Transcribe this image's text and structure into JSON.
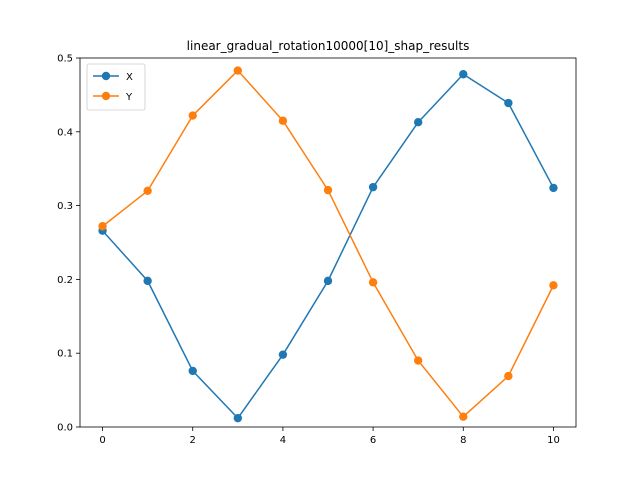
{
  "chart_data": {
    "type": "line",
    "title": "linear_gradual_rotation10000[10]_shap_results",
    "xlabel": "",
    "ylabel": "",
    "x": [
      0,
      1,
      2,
      3,
      4,
      5,
      6,
      7,
      8,
      9,
      10
    ],
    "xlim": [
      -0.5,
      10.5
    ],
    "ylim": [
      0.0,
      0.5
    ],
    "x_ticks": [
      0,
      2,
      4,
      6,
      8,
      10
    ],
    "x_tick_labels": [
      "0",
      "2",
      "4",
      "6",
      "8",
      "10"
    ],
    "y_ticks": [
      0.0,
      0.1,
      0.2,
      0.3,
      0.4,
      0.5
    ],
    "y_tick_labels": [
      "0.0",
      "0.1",
      "0.2",
      "0.3",
      "0.4",
      "0.5"
    ],
    "grid": false,
    "legend_position": "top-left",
    "series": [
      {
        "name": "X",
        "color": "#1f77b4",
        "marker": "circle",
        "values": [
          0.266,
          0.198,
          0.076,
          0.012,
          0.098,
          0.198,
          0.325,
          0.413,
          0.478,
          0.439,
          0.324
        ]
      },
      {
        "name": "Y",
        "color": "#ff7f0e",
        "marker": "circle",
        "values": [
          0.272,
          0.32,
          0.422,
          0.483,
          0.415,
          0.321,
          0.196,
          0.09,
          0.014,
          0.069,
          0.192
        ]
      }
    ]
  }
}
